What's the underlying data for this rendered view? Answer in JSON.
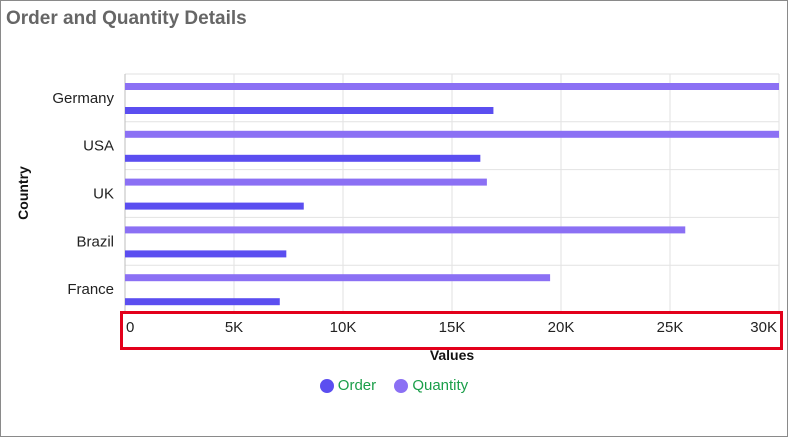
{
  "title": "Order and Quantity Details",
  "colors": {
    "order": "#5b4ef0",
    "quantity": "#8b70f4",
    "legend_text": "#1a9e49",
    "highlight": "#e3001b",
    "grid": "#e2e2e2"
  },
  "chart_data": {
    "type": "bar",
    "orientation": "horizontal",
    "title": "Order and Quantity Details",
    "xlabel": "Values",
    "ylabel": "Country",
    "categories": [
      "Germany",
      "USA",
      "UK",
      "Brazil",
      "France"
    ],
    "series": [
      {
        "name": "Order",
        "values": [
          16900,
          16300,
          8200,
          7400,
          7100
        ]
      },
      {
        "name": "Quantity",
        "values": [
          30500,
          30500,
          16600,
          25700,
          19500
        ]
      }
    ],
    "xlim": [
      0,
      30000
    ],
    "xticks": [
      0,
      5000,
      10000,
      15000,
      20000,
      25000,
      30000
    ],
    "xtick_labels": [
      "0",
      "5K",
      "10K",
      "15K",
      "20K",
      "25K",
      "30K"
    ],
    "grid": true,
    "legend": "bottom-center"
  }
}
